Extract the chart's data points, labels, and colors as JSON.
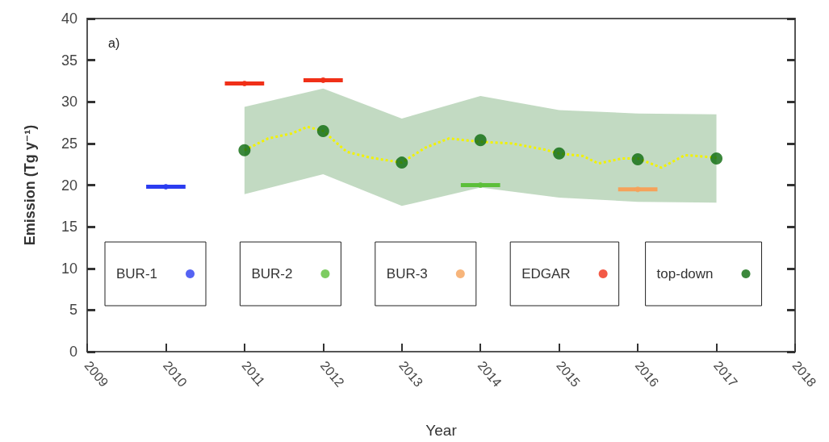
{
  "chart_data": {
    "type": "scatter",
    "xlabel": "Year",
    "ylabel": "Emission (Tg y⁻¹)",
    "annotations": [
      "a)"
    ],
    "xlim": [
      2009,
      2018
    ],
    "xticks": [
      2009,
      2010,
      2011,
      2012,
      2013,
      2014,
      2015,
      2016,
      2017,
      2018
    ],
    "ylim": [
      0,
      40
    ],
    "yticks": [
      0,
      5,
      10,
      15,
      20,
      25,
      30,
      35,
      40
    ],
    "grid": false,
    "legend": "bottom",
    "marker": "circle",
    "series": [
      {
        "name": "BUR-1",
        "color": "#2b3cf0",
        "x": [
          2010
        ],
        "values": [
          19.8
        ],
        "xerrors": [
          0.25
        ]
      },
      {
        "name": "BUR-2",
        "color": "#5cbf3a",
        "x": [
          2014
        ],
        "values": [
          20.0
        ],
        "xerrors": [
          0.25
        ]
      },
      {
        "name": "BUR-3",
        "color": "#f5a25a",
        "x": [
          2016
        ],
        "values": [
          19.5
        ],
        "xerrors": [
          0.25
        ]
      },
      {
        "name": "EDGAR",
        "color": "#f03018",
        "x": [
          2011,
          2012
        ],
        "values": [
          32.2,
          32.6
        ],
        "xerrors": [
          0.25,
          0.25
        ]
      },
      {
        "type": "line",
        "color": "#f2f200",
        "line_style": "dotted",
        "marker": "none",
        "x": [
          2011,
          2011.3,
          2011.6,
          2011.8,
          2012,
          2012.3,
          2012.6,
          2013,
          2013.3,
          2013.6,
          2014,
          2014.4,
          2014.8,
          2015,
          2015.3,
          2015.5,
          2015.8,
          2016,
          2016.3,
          2016.6,
          2017
        ],
        "values": [
          24.2,
          25.6,
          26.2,
          27.0,
          26.5,
          24.0,
          23.3,
          22.7,
          24.5,
          25.6,
          25.2,
          25.0,
          24.3,
          23.8,
          23.5,
          22.6,
          23.2,
          23.2,
          22.1,
          23.6,
          23.3
        ]
      },
      {
        "name": "top-down",
        "color": "#0b6a0b",
        "x": [
          2011,
          2012,
          2013,
          2014,
          2015,
          2016,
          2017
        ],
        "values": [
          24.2,
          26.5,
          22.7,
          25.4,
          23.8,
          23.1,
          23.2
        ],
        "lower": [
          18.9,
          21.3,
          17.5,
          19.7,
          18.5,
          18.0,
          17.9
        ],
        "upper": [
          29.4,
          31.6,
          28.0,
          30.7,
          29.0,
          28.6,
          28.5
        ]
      }
    ]
  }
}
